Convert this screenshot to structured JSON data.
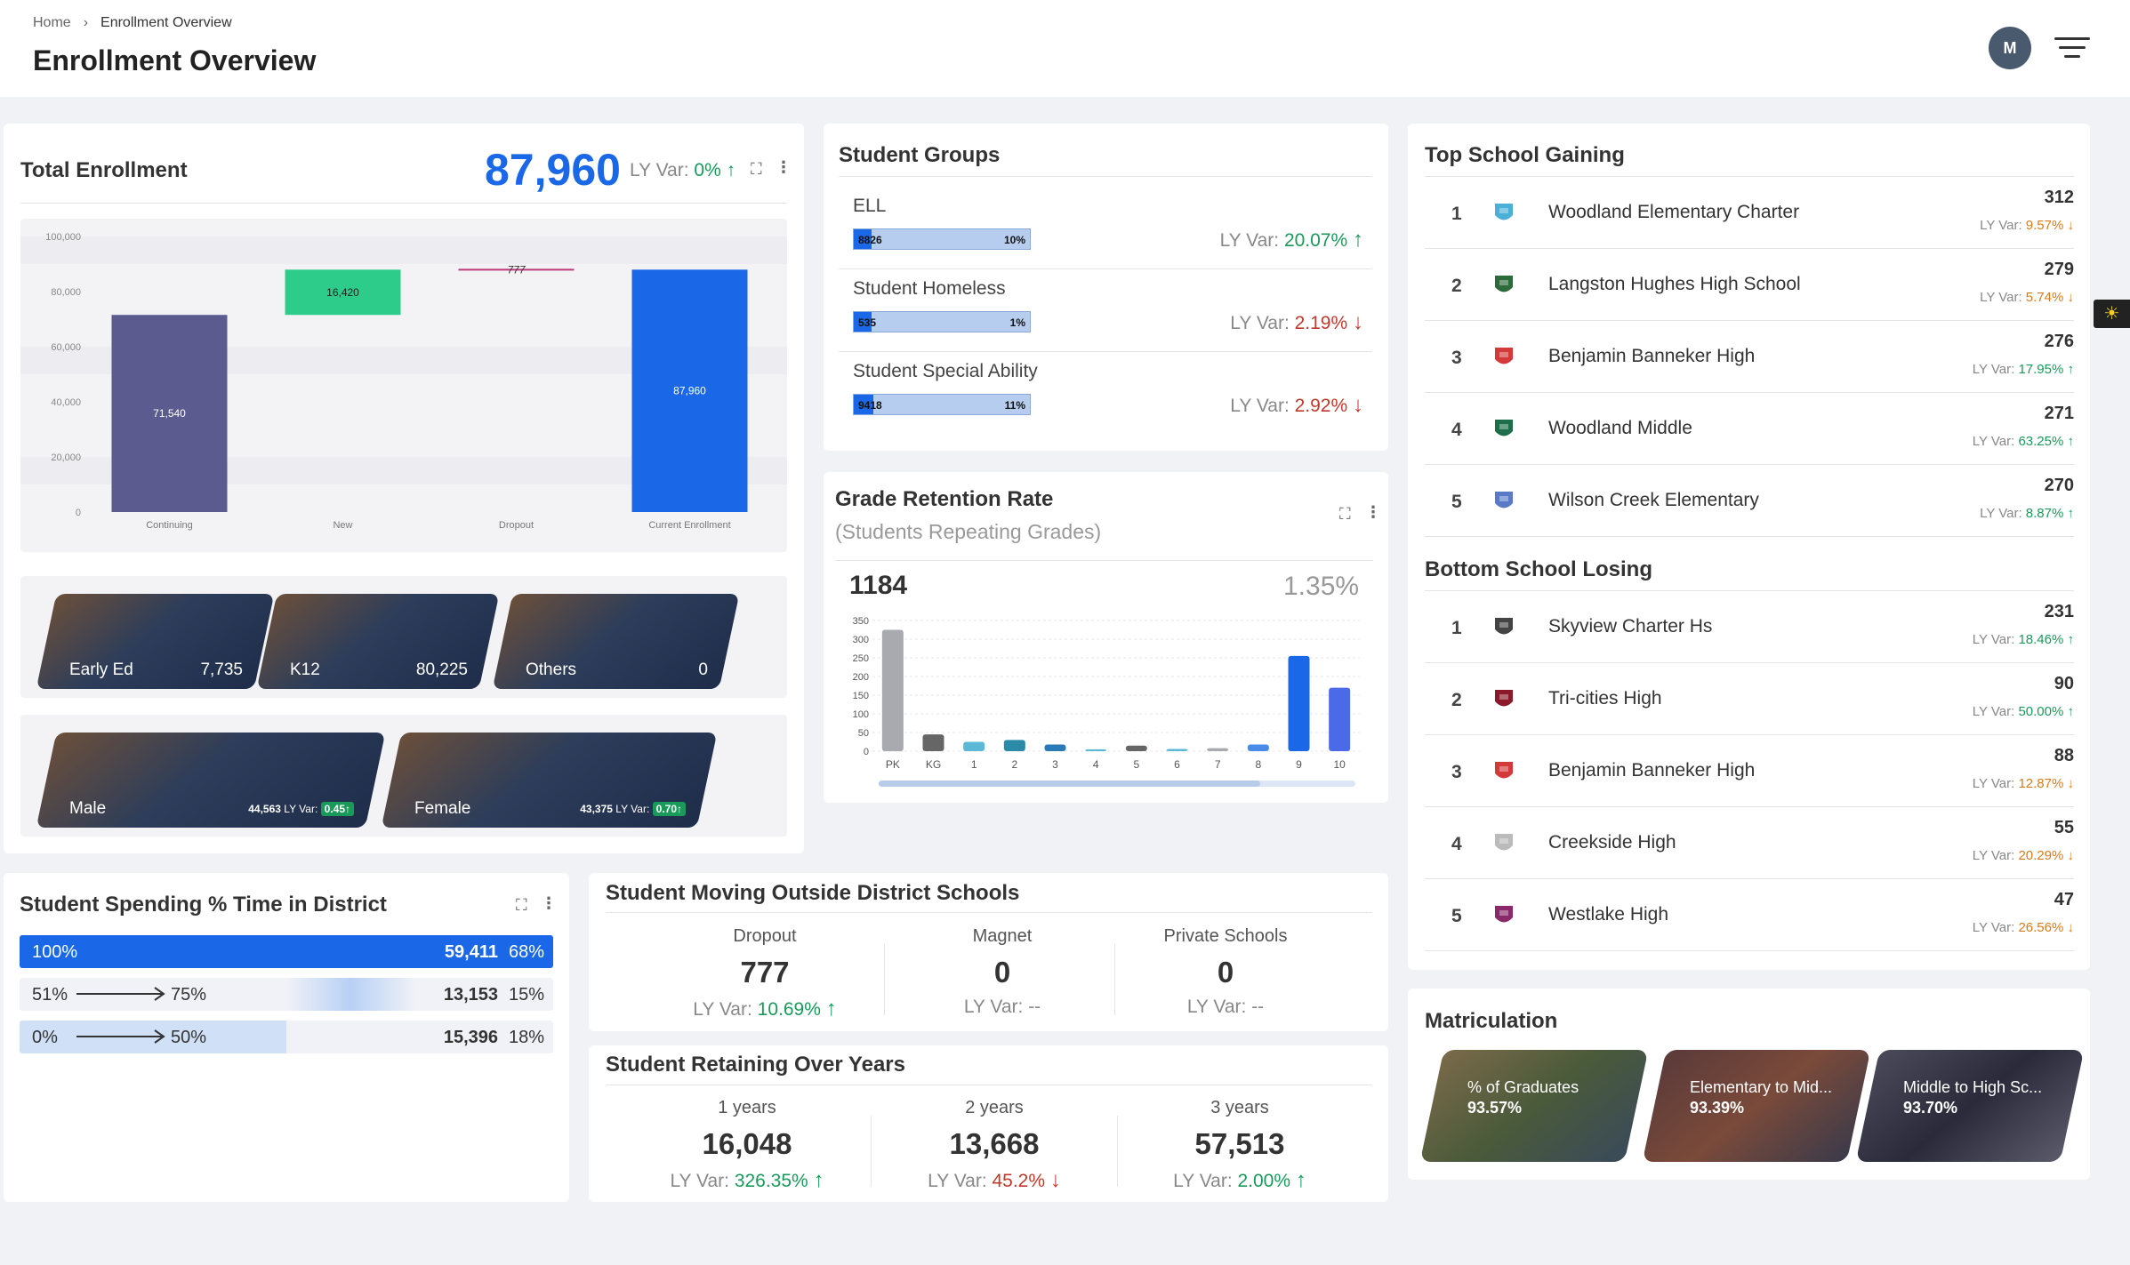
{
  "header": {
    "crumb_home": "Home",
    "crumb_sep": "›",
    "crumb_current": "Enrollment Overview",
    "title": "Enrollment Overview",
    "avatar": "M",
    "filter_icon": "hamburger-filter-icon"
  },
  "total_enrollment": {
    "title": "Total Enrollment",
    "value": "87,960",
    "ly_label": "LY Var:",
    "ly_value": "0%",
    "ly_arrow": "↑",
    "chart_data": {
      "type": "bar",
      "subtype": "waterfall",
      "categories": [
        "Continuing",
        "New",
        "Dropout",
        "Current Enrollment"
      ],
      "values": [
        71540,
        16420,
        777,
        87960
      ],
      "labels": [
        "71,540",
        "16,420",
        "777",
        "87,960"
      ],
      "y_ticks": [
        "0",
        "20,000",
        "40,000",
        "60,000",
        "80,000",
        "100,000"
      ],
      "ylim": [
        0,
        100000
      ],
      "colors": {
        "Continuing": "#5b5b8f",
        "New": "#2ecc8a",
        "Dropout": "#c0397a",
        "Current Enrollment": "#1a68e8"
      }
    },
    "tiles": [
      {
        "label": "Early Ed",
        "value": "7,735"
      },
      {
        "label": "K12",
        "value": "80,225"
      },
      {
        "label": "Others",
        "value": "0"
      }
    ],
    "gender": [
      {
        "label": "Male",
        "value": "44,563",
        "ly_label": "LY Var:",
        "ly_value": "0.45↑"
      },
      {
        "label": "Female",
        "value": "43,375",
        "ly_label": "LY Var:",
        "ly_value": "0.70↑"
      }
    ]
  },
  "student_groups": {
    "title": "Student Groups",
    "rows": [
      {
        "label": "ELL",
        "count": "8826",
        "pct": "10%",
        "fill": 0.1,
        "ly_label": "LY Var:",
        "ly_value": "20.07%",
        "arrow": "↑",
        "trend": "up"
      },
      {
        "label": "Student Homeless",
        "count": "535",
        "pct": "1%",
        "fill": 0.01,
        "ly_label": "LY Var:",
        "ly_value": "2.19%",
        "arrow": "↓",
        "trend": "down"
      },
      {
        "label": "Student Special Ability",
        "count": "9418",
        "pct": "11%",
        "fill": 0.11,
        "ly_label": "LY Var:",
        "ly_value": "2.92%",
        "arrow": "↓",
        "trend": "down"
      }
    ]
  },
  "grade_retention": {
    "title": "Grade Retention Rate",
    "subtitle": "(Students Repeating Grades)",
    "total": "1184",
    "pct": "1.35%",
    "chart_data": {
      "type": "bar",
      "categories": [
        "PK",
        "KG",
        "1",
        "2",
        "3",
        "4",
        "5",
        "6",
        "7",
        "8",
        "9",
        "10"
      ],
      "values": [
        325,
        45,
        25,
        30,
        18,
        5,
        15,
        6,
        8,
        18,
        255,
        170
      ],
      "ylim": [
        0,
        350
      ],
      "y_ticks": [
        "0",
        "50",
        "100",
        "150",
        "200",
        "250",
        "300",
        "350"
      ],
      "colors": [
        "#a9a9b0",
        "#666",
        "#5bb8d6",
        "#2b8aa8",
        "#2b7ab8",
        "#5bb8d6",
        "#666",
        "#5bb8d6",
        "#a9a9b0",
        "#4a8ae8",
        "#1a68e8",
        "#4a6ae8"
      ]
    }
  },
  "top_gaining": {
    "title": "Top School Gaining",
    "rows": [
      {
        "rank": "1",
        "name": "Woodland Elementary Charter",
        "count": "312",
        "ly_label": "LY Var:",
        "ly_value": "9.57% ↓",
        "trend": "down",
        "logo_color": "#4ab0d8"
      },
      {
        "rank": "2",
        "name": "Langston Hughes High School",
        "count": "279",
        "ly_label": "LY Var:",
        "ly_value": "5.74% ↓",
        "trend": "down",
        "logo_color": "#2e6b3a"
      },
      {
        "rank": "3",
        "name": "Benjamin Banneker High",
        "count": "276",
        "ly_label": "LY Var:",
        "ly_value": "17.95% ↑",
        "trend": "up",
        "logo_color": "#d43a3a"
      },
      {
        "rank": "4",
        "name": "Woodland Middle",
        "count": "271",
        "ly_label": "LY Var:",
        "ly_value": "63.25% ↑",
        "trend": "up",
        "logo_color": "#1e6e4a"
      },
      {
        "rank": "5",
        "name": "Wilson Creek Elementary",
        "count": "270",
        "ly_label": "LY Var:",
        "ly_value": "8.87% ↑",
        "trend": "up",
        "logo_color": "#5a7ac8"
      }
    ]
  },
  "bottom_losing": {
    "title": "Bottom School Losing",
    "rows": [
      {
        "rank": "1",
        "name": "Skyview Charter Hs",
        "count": "231",
        "ly_label": "LY Var:",
        "ly_value": "18.46% ↑",
        "trend": "up",
        "logo_color": "#444"
      },
      {
        "rank": "2",
        "name": "Tri-cities High",
        "count": "90",
        "ly_label": "LY Var:",
        "ly_value": "50.00% ↑",
        "trend": "up",
        "logo_color": "#8a1a2a"
      },
      {
        "rank": "3",
        "name": "Benjamin Banneker High",
        "count": "88",
        "ly_label": "LY Var:",
        "ly_value": "12.87% ↓",
        "trend": "down",
        "logo_color": "#d43a3a"
      },
      {
        "rank": "4",
        "name": "Creekside High",
        "count": "55",
        "ly_label": "LY Var:",
        "ly_value": "20.29% ↓",
        "trend": "down",
        "logo_color": "#bbb"
      },
      {
        "rank": "5",
        "name": "Westlake High",
        "count": "47",
        "ly_label": "LY Var:",
        "ly_value": "26.56% ↓",
        "trend": "down",
        "logo_color": "#8a2a6a"
      }
    ]
  },
  "spending": {
    "title": "Student Spending % Time in District",
    "rows": [
      {
        "from": "100%",
        "to": "",
        "value": "59,411",
        "pct": "68%",
        "fill": 0.68
      },
      {
        "from": "51%",
        "to": "75%",
        "value": "13,153",
        "pct": "15%",
        "fill": 0.15
      },
      {
        "from": "0%",
        "to": "50%",
        "value": "15,396",
        "pct": "18%",
        "fill": 0.18
      }
    ]
  },
  "moving_outside": {
    "title": "Student Moving Outside District Schools",
    "cols": [
      {
        "label": "Dropout",
        "value": "777",
        "ly_label": "LY Var:",
        "ly_value": "10.69%",
        "arrow": "↑"
      },
      {
        "label": "Magnet",
        "value": "0",
        "ly_label": "LY Var:",
        "ly_value": "--",
        "arrow": ""
      },
      {
        "label": "Private Schools",
        "value": "0",
        "ly_label": "LY Var:",
        "ly_value": "--",
        "arrow": ""
      }
    ]
  },
  "retaining": {
    "title": "Student Retaining Over Years",
    "cols": [
      {
        "label": "1 years",
        "value": "16,048",
        "ly_label": "LY Var:",
        "ly_value": "326.35%",
        "arrow": "↑",
        "trend": "up"
      },
      {
        "label": "2 years",
        "value": "13,668",
        "ly_label": "LY Var:",
        "ly_value": "45.2%",
        "arrow": "↓",
        "trend": "down"
      },
      {
        "label": "3 years",
        "value": "57,513",
        "ly_label": "LY Var:",
        "ly_value": "2.00%",
        "arrow": "↑",
        "trend": "up"
      }
    ]
  },
  "matriculation": {
    "title": "Matriculation",
    "tiles": [
      {
        "label": "% of Graduates",
        "value": "93.57%"
      },
      {
        "label": "Elementary to Mid...",
        "value": "93.39%"
      },
      {
        "label": "Middle to High Sc...",
        "value": "93.70%"
      }
    ]
  }
}
